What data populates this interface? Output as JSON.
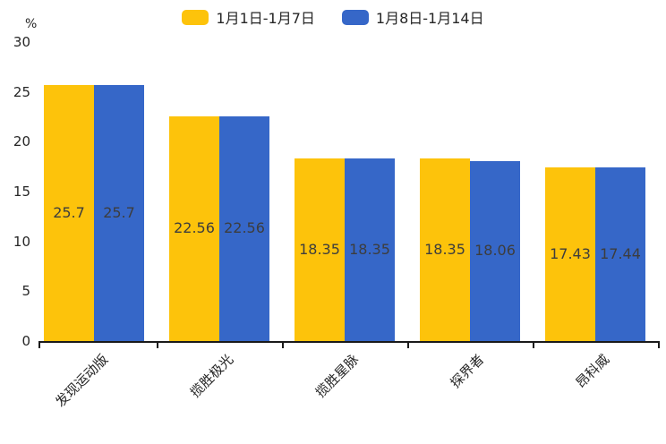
{
  "chart_data": {
    "type": "bar",
    "title": "",
    "ylabel_unit": "%",
    "categories": [
      "发现运动版",
      "揽胜极光",
      "揽胜星脉",
      "探界者",
      "昂科威"
    ],
    "series": [
      {
        "name": "1月1日-1月7日",
        "color": "#FDC30B",
        "values": [
          25.7,
          22.56,
          18.35,
          18.35,
          17.43
        ]
      },
      {
        "name": "1月8日-1月14日",
        "color": "#3667C8",
        "values": [
          25.7,
          22.56,
          18.35,
          18.06,
          17.44
        ]
      }
    ],
    "ylim": [
      0,
      30
    ],
    "yticks": [
      0,
      5,
      10,
      15,
      20,
      25,
      30
    ],
    "grid": false,
    "legend_position": "top",
    "bar_labels_visible": true,
    "bar_label_color": "#3d3d3d",
    "axis_color": "#1a1a1a",
    "text_color": "#262626"
  }
}
